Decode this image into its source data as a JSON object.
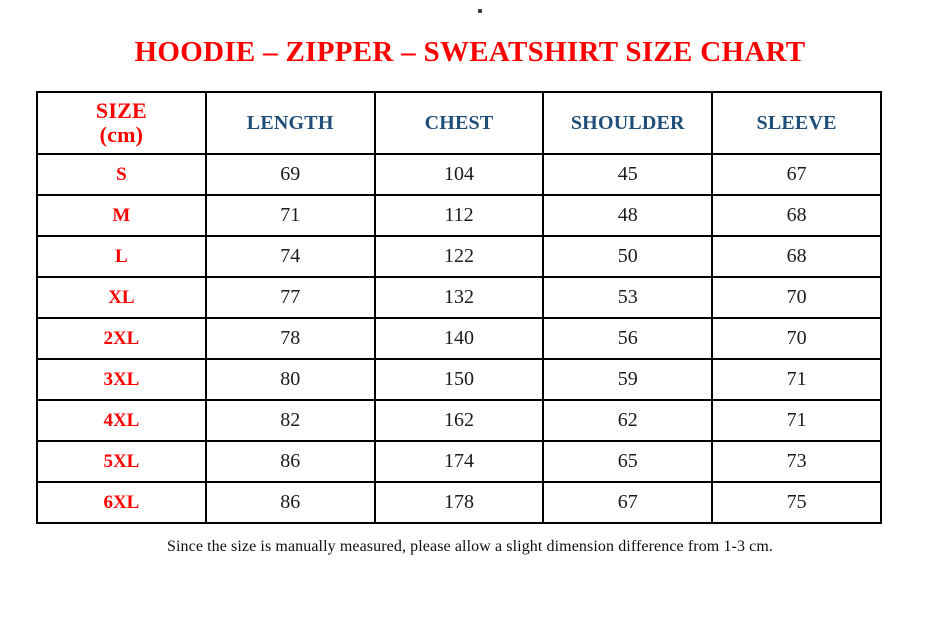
{
  "page": {
    "title": "HOODIE – ZIPPER – SWEATSHIRT SIZE CHART",
    "footer_note": "Since the size is manually measured, please allow a slight dimension difference from 1-3 cm.",
    "stray_mark": "."
  },
  "colors": {
    "title_red": "#ff0000",
    "size_label_red": "#ff0000",
    "header_blue": "#1f4e79",
    "value_text": "#1c1c1c",
    "border": "#000000",
    "background": "#ffffff"
  },
  "table": {
    "unit": "cm",
    "header": {
      "size_line1": "SIZE",
      "size_line2": "(cm)",
      "columns": [
        "LENGTH",
        "CHEST",
        "SHOULDER",
        "SLEEVE"
      ]
    },
    "rows": [
      {
        "size": "S",
        "cells": [
          "69",
          "104",
          "45",
          "67"
        ]
      },
      {
        "size": "M",
        "cells": [
          "71",
          "112",
          "48",
          "68"
        ]
      },
      {
        "size": "L",
        "cells": [
          "74",
          "122",
          "50",
          "68"
        ]
      },
      {
        "size": "XL",
        "cells": [
          "77",
          "132",
          "53",
          "70"
        ]
      },
      {
        "size": "2XL",
        "cells": [
          "78",
          "140",
          "56",
          "70"
        ]
      },
      {
        "size": "3XL",
        "cells": [
          "80",
          "150",
          "59",
          "71"
        ]
      },
      {
        "size": "4XL",
        "cells": [
          "82",
          "162",
          "62",
          "71"
        ]
      },
      {
        "size": "5XL",
        "cells": [
          "86",
          "174",
          "65",
          "73"
        ]
      },
      {
        "size": "6XL",
        "cells": [
          "86",
          "178",
          "67",
          "75"
        ]
      }
    ]
  }
}
